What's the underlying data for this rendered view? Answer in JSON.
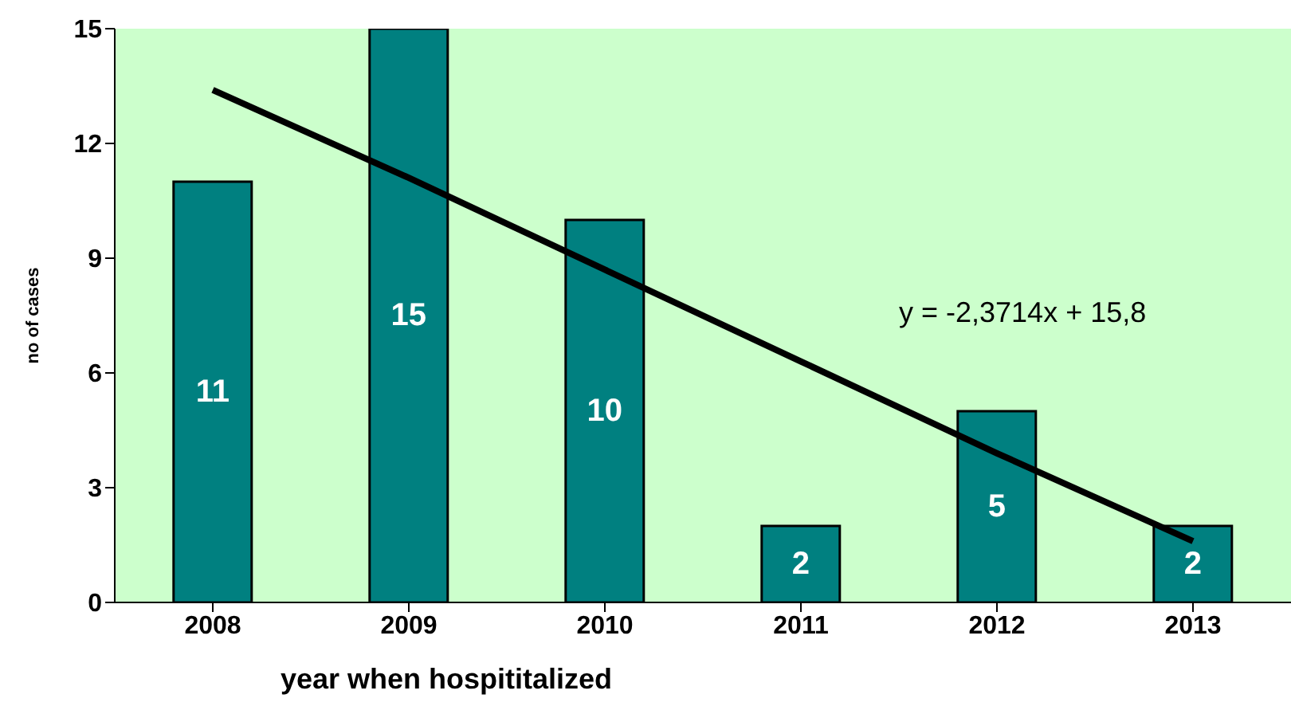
{
  "chart_data": {
    "type": "bar",
    "xlabel": "year when hospititalized",
    "ylabel": "no of cases",
    "categories": [
      "2008",
      "2009",
      "2010",
      "2011",
      "2012",
      "2013"
    ],
    "series": [
      {
        "color": "#008080",
        "values": [
          11,
          15,
          10,
          2,
          5,
          2
        ],
        "value_labels": [
          "11",
          "15",
          "10",
          "2",
          "5",
          "2"
        ]
      },
      {
        "type": "line",
        "color": "#000000",
        "values": [
          13.4,
          11.1,
          8.7,
          6.3,
          3.9,
          1.6
        ]
      }
    ],
    "ylim": [
      0,
      15
    ],
    "yticks": [
      0,
      3,
      6,
      9,
      12,
      15
    ],
    "annotations": [
      "y = -2,3714x + 15,8"
    ]
  }
}
